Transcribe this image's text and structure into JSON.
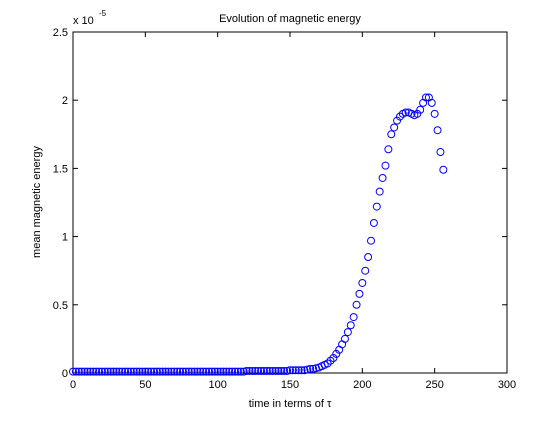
{
  "chart_data": {
    "type": "scatter",
    "title": "Evolution of magnetic energy",
    "xlabel": "time in terms of τ",
    "ylabel": "mean magnetic energy",
    "y_multiplier": {
      "base": "x 10",
      "exponent": "-5"
    },
    "marker": "circle",
    "color": "#0000ff",
    "x": [
      0,
      2,
      4,
      6,
      8,
      10,
      12,
      14,
      16,
      18,
      20,
      22,
      24,
      26,
      28,
      30,
      32,
      34,
      36,
      38,
      40,
      42,
      44,
      46,
      48,
      50,
      52,
      54,
      56,
      58,
      60,
      62,
      64,
      66,
      68,
      70,
      72,
      74,
      76,
      78,
      80,
      82,
      84,
      86,
      88,
      90,
      92,
      94,
      96,
      98,
      100,
      102,
      104,
      106,
      108,
      110,
      112,
      114,
      116,
      118,
      120,
      122,
      124,
      126,
      128,
      130,
      132,
      134,
      136,
      138,
      140,
      142,
      144,
      146,
      148,
      150,
      152,
      154,
      156,
      158,
      160,
      162,
      164,
      166,
      168,
      170,
      172,
      174,
      176,
      178,
      180,
      182,
      184,
      186,
      188,
      190,
      192,
      194,
      196,
      198,
      200,
      202,
      204,
      206,
      208,
      210,
      212,
      214,
      216,
      218,
      220,
      222,
      224,
      226,
      228,
      230,
      232,
      234,
      236,
      238,
      240,
      242,
      244,
      246,
      248,
      250,
      252,
      254,
      256
    ],
    "values": [
      0.01,
      0.01,
      0.01,
      0.01,
      0.01,
      0.01,
      0.01,
      0.01,
      0.01,
      0.01,
      0.01,
      0.01,
      0.01,
      0.01,
      0.01,
      0.01,
      0.01,
      0.01,
      0.01,
      0.01,
      0.01,
      0.01,
      0.01,
      0.01,
      0.01,
      0.01,
      0.01,
      0.01,
      0.01,
      0.01,
      0.01,
      0.01,
      0.01,
      0.01,
      0.01,
      0.01,
      0.01,
      0.01,
      0.01,
      0.01,
      0.01,
      0.01,
      0.01,
      0.01,
      0.01,
      0.01,
      0.01,
      0.01,
      0.01,
      0.01,
      0.01,
      0.01,
      0.01,
      0.01,
      0.01,
      0.01,
      0.01,
      0.01,
      0.01,
      0.01,
      0.015,
      0.015,
      0.015,
      0.015,
      0.015,
      0.015,
      0.015,
      0.015,
      0.015,
      0.015,
      0.015,
      0.015,
      0.015,
      0.015,
      0.015,
      0.02,
      0.02,
      0.02,
      0.02,
      0.02,
      0.02,
      0.025,
      0.03,
      0.03,
      0.035,
      0.04,
      0.05,
      0.06,
      0.07,
      0.09,
      0.11,
      0.14,
      0.17,
      0.21,
      0.25,
      0.3,
      0.35,
      0.41,
      0.5,
      0.58,
      0.66,
      0.75,
      0.85,
      0.97,
      1.1,
      1.22,
      1.33,
      1.43,
      1.52,
      1.64,
      1.75,
      1.8,
      1.85,
      1.88,
      1.9,
      1.91,
      1.91,
      1.9,
      1.89,
      1.9,
      1.93,
      1.98,
      2.02,
      2.02,
      1.98,
      1.9,
      1.78,
      1.62,
      1.49
    ],
    "xlim": [
      0,
      300
    ],
    "xticks": [
      0,
      50,
      100,
      150,
      200,
      250,
      300
    ],
    "ylim": [
      0,
      2.5
    ],
    "yticks": [
      0,
      0.5,
      1,
      1.5,
      2,
      2.5
    ],
    "grid": false
  }
}
